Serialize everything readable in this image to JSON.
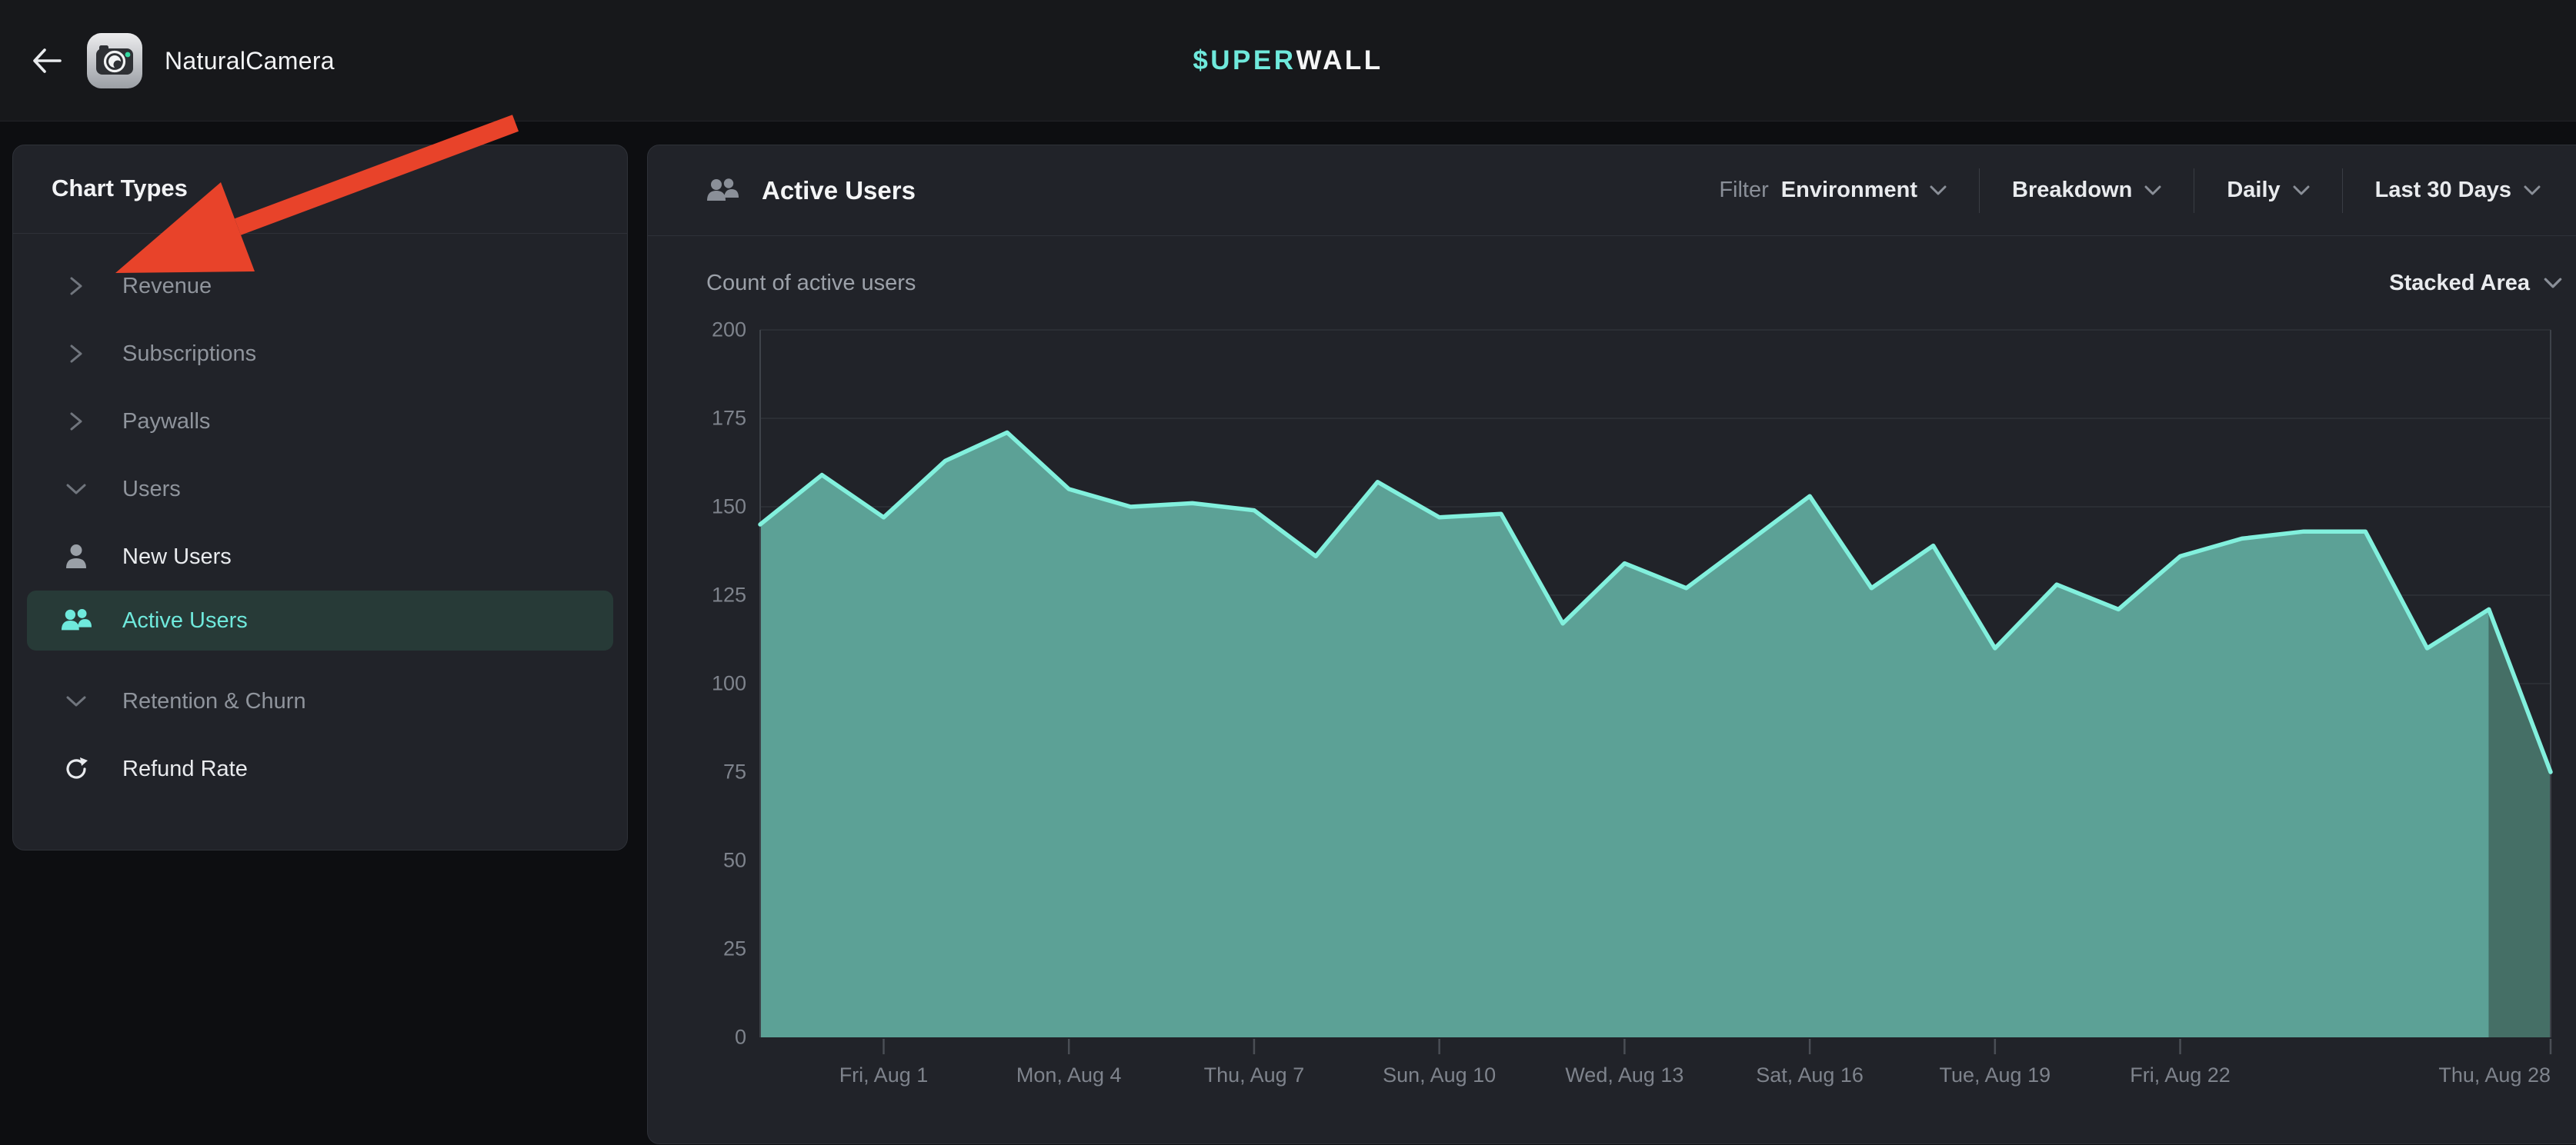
{
  "top_bar": {
    "app_name": "NaturalCamera",
    "logo_prefix": "$UPER",
    "logo_suffix": "WALL"
  },
  "sidebar": {
    "title": "Chart Types",
    "items": [
      {
        "label": "Revenue",
        "kind": "group",
        "icon": "chevron-right-icon",
        "state": "collapsed",
        "active": false
      },
      {
        "label": "Subscriptions",
        "kind": "group",
        "icon": "chevron-right-icon",
        "state": "collapsed",
        "active": false
      },
      {
        "label": "Paywalls",
        "kind": "group",
        "icon": "chevron-right-icon",
        "state": "collapsed",
        "active": false
      },
      {
        "label": "Users",
        "kind": "group",
        "icon": "chevron-down-icon",
        "state": "expanded",
        "active": false
      },
      {
        "label": "New Users",
        "kind": "leaf",
        "icon": "person-icon",
        "state": "",
        "active": false
      },
      {
        "label": "Active Users",
        "kind": "leaf",
        "icon": "people-icon",
        "state": "",
        "active": true
      },
      {
        "label": "Retention & Churn",
        "kind": "group",
        "icon": "chevron-down-icon",
        "state": "expanded",
        "active": false,
        "gap_before": true
      },
      {
        "label": "Refund Rate",
        "kind": "leaf",
        "icon": "refresh-icon",
        "state": "",
        "active": false
      }
    ]
  },
  "main": {
    "title": "Active Users",
    "filters": {
      "filter_label": "Filter",
      "environment": "Environment",
      "breakdown": "Breakdown",
      "interval": "Daily",
      "range": "Last 30 Days"
    },
    "subheader": {
      "left": "Count of active users",
      "chart_type": "Stacked Area"
    }
  },
  "chart_data": {
    "type": "area",
    "title": "Active Users",
    "ylabel": "Count of active users",
    "ylim": [
      0,
      200
    ],
    "yticks": [
      0,
      25,
      50,
      75,
      100,
      125,
      150,
      175,
      200
    ],
    "grid": true,
    "num_points": 30,
    "series": [
      {
        "name": "Active Users",
        "values": [
          145,
          159,
          147,
          163,
          171,
          155,
          150,
          151,
          149,
          136,
          157,
          147,
          148,
          117,
          134,
          127,
          140,
          153,
          127,
          139,
          110,
          128,
          121,
          136,
          141,
          143,
          143,
          110,
          121,
          75
        ]
      }
    ],
    "x_ticks": [
      {
        "label": "Fri, Aug 1",
        "index": 2
      },
      {
        "label": "Mon, Aug 4",
        "index": 5
      },
      {
        "label": "Thu, Aug 7",
        "index": 8
      },
      {
        "label": "Sun, Aug 10",
        "index": 11
      },
      {
        "label": "Wed, Aug 13",
        "index": 14
      },
      {
        "label": "Sat, Aug 16",
        "index": 17
      },
      {
        "label": "Tue, Aug 19",
        "index": 20
      },
      {
        "label": "Fri, Aug 22",
        "index": 23
      },
      {
        "label": "Thu, Aug 28",
        "index": 29,
        "edge_aligned": true
      }
    ],
    "partial_segment_start_index": 28,
    "colors": {
      "line": "#82f0dd",
      "fill": "#5ca196",
      "fill_partial": "#456f66",
      "grid": "#2b2e34",
      "plot_edge": "#3e4249",
      "tick": "#4a4e55"
    }
  },
  "annotation": {
    "shape": "arrow",
    "color": "#e8432a",
    "points_at": "Revenue"
  },
  "colors": {
    "accent": "#6fe9dc",
    "panel_bg": "#212329",
    "page_bg": "#0d0e11"
  }
}
